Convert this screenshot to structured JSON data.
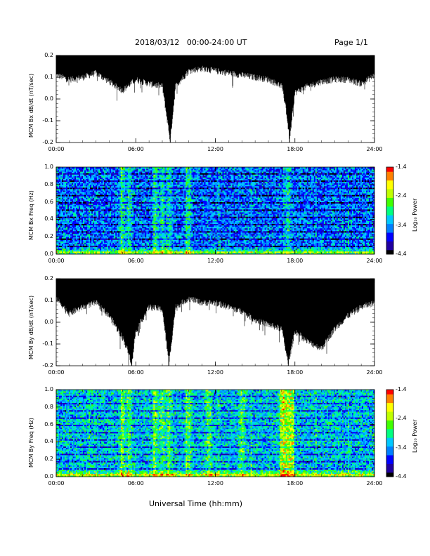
{
  "header": {
    "title": "2018/03/12   00:00-24:00 UT",
    "page": "Page 1/1"
  },
  "x_axis": {
    "xlabel": "Universal Time (hh:mm)",
    "ticks": [
      "00:00",
      "06:00",
      "12:00",
      "18:00",
      "24:00"
    ],
    "xlim_hours": [
      0,
      24
    ]
  },
  "colors": {
    "trace": "#000000",
    "colormap": [
      "#000000",
      "#2000a0",
      "#0000ff",
      "#0080ff",
      "#00c8ff",
      "#00ff80",
      "#40ff00",
      "#c0ff00",
      "#ffff00",
      "#ff8000",
      "#ff0000"
    ]
  },
  "chart_data": [
    {
      "type": "line",
      "ylabel": "MCM Bx dB/dt (nT/sec)",
      "ylim": [
        -0.2,
        0.2
      ],
      "yticks": [
        "0.2",
        "0.1",
        "0.0",
        "-0.1",
        "-0.2"
      ],
      "x_hours": [
        0,
        1,
        2,
        3,
        4,
        5,
        6,
        7,
        8,
        8.6,
        9,
        10,
        11,
        12,
        13,
        14,
        15,
        16,
        17,
        17.3,
        17.6,
        18,
        19,
        20,
        21,
        22,
        23,
        24
      ],
      "series": [
        {
          "label": "upper",
          "values": [
            0.2,
            0.2,
            0.2,
            0.2,
            0.2,
            0.2,
            0.2,
            0.2,
            0.2,
            0.2,
            0.2,
            0.2,
            0.2,
            0.2,
            0.2,
            0.2,
            0.2,
            0.2,
            0.2,
            0.2,
            0.2,
            0.2,
            0.2,
            0.2,
            0.2,
            0.2,
            0.2,
            0.2
          ]
        },
        {
          "label": "lower",
          "values": [
            0.1,
            0.08,
            0.09,
            0.11,
            0.07,
            0.03,
            0.08,
            0.06,
            0.05,
            -0.2,
            0.05,
            0.12,
            0.13,
            0.12,
            0.11,
            0.1,
            0.09,
            0.08,
            0.05,
            -0.04,
            -0.2,
            0.02,
            0.05,
            0.07,
            0.08,
            0.08,
            0.06,
            0.1
          ]
        }
      ]
    },
    {
      "type": "heatmap",
      "ylabel": "MCM Bx Freq (Hz)",
      "ylim": [
        0.0,
        1.0
      ],
      "yticks": [
        "1.0",
        "0.8",
        "0.6",
        "0.4",
        "0.2",
        "0.0"
      ],
      "colorbar": {
        "title": "Log₁₀ Power",
        "range": [
          -4.4,
          -1.4
        ],
        "ticks": [
          "-1.4",
          "-2.4",
          "-3.4",
          "-4.4"
        ]
      },
      "active_hours": [
        5.0,
        5.5,
        7.5,
        8.0,
        8.5,
        10.0,
        17.5
      ]
    },
    {
      "type": "line",
      "ylabel": "MCM By dB/dt (nT/sec)",
      "ylim": [
        -0.2,
        0.2
      ],
      "yticks": [
        "0.2",
        "0.1",
        "0.0",
        "-0.1",
        "-0.2"
      ],
      "x_hours": [
        0,
        1,
        2,
        3,
        4,
        5,
        5.4,
        5.7,
        6,
        7,
        8,
        8.5,
        9,
        10,
        11,
        12,
        13,
        14,
        15,
        16,
        17,
        17.5,
        18,
        19,
        20,
        21,
        22,
        23,
        24
      ],
      "series": [
        {
          "label": "upper",
          "values": [
            0.2,
            0.2,
            0.2,
            0.2,
            0.2,
            0.2,
            0.2,
            0.2,
            0.2,
            0.2,
            0.2,
            0.2,
            0.2,
            0.2,
            0.2,
            0.2,
            0.2,
            0.2,
            0.2,
            0.2,
            0.2,
            0.2,
            0.2,
            0.2,
            0.2,
            0.2,
            0.2,
            0.2,
            0.2
          ]
        },
        {
          "label": "lower",
          "values": [
            0.1,
            0.03,
            0.06,
            0.08,
            0.02,
            -0.08,
            -0.14,
            -0.2,
            -0.05,
            0.06,
            0.05,
            -0.2,
            0.06,
            0.1,
            0.08,
            0.08,
            0.06,
            0.04,
            0.0,
            -0.02,
            -0.04,
            -0.2,
            -0.05,
            -0.1,
            -0.13,
            -0.04,
            0.02,
            0.06,
            0.08
          ]
        }
      ]
    },
    {
      "type": "heatmap",
      "ylabel": "MCM By Freq (Hz)",
      "ylim": [
        0.0,
        1.0
      ],
      "yticks": [
        "1.0",
        "0.8",
        "0.6",
        "0.4",
        "0.2",
        "0.0"
      ],
      "colorbar": {
        "title": "Log₁₀ Power",
        "range": [
          -4.4,
          -1.4
        ],
        "ticks": [
          "-1.4",
          "-2.4",
          "-3.4",
          "-4.4"
        ]
      },
      "active_hours": [
        5.0,
        5.5,
        7.5,
        8.0,
        8.5,
        10.0,
        11.5,
        14.0,
        17.0,
        17.5
      ]
    }
  ]
}
